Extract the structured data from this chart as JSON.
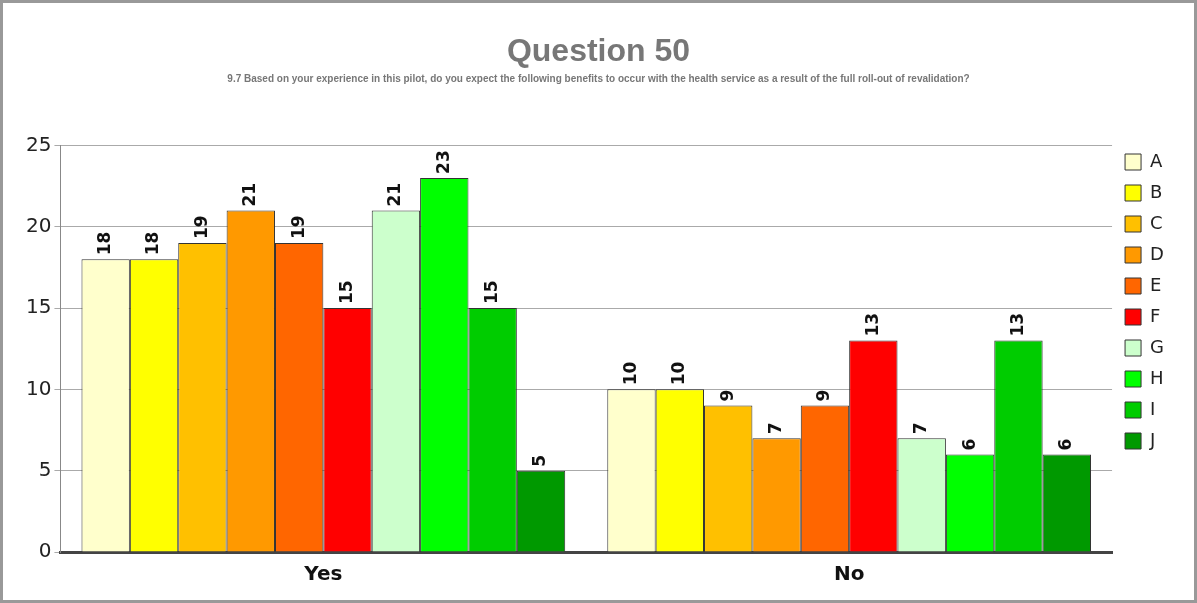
{
  "chart_data": {
    "type": "bar",
    "title": "Question 50",
    "subtitle": "9.7 Based on your experience in this pilot, do you expect the following benefits to occur with the health service as a result of the full roll-out of revalidation?",
    "categories": [
      "Yes",
      "No"
    ],
    "series": [
      {
        "name": "A",
        "color": "#ffffcc",
        "values": [
          18,
          10
        ]
      },
      {
        "name": "B",
        "color": "#ffff00",
        "values": [
          18,
          10
        ]
      },
      {
        "name": "C",
        "color": "#ffc000",
        "values": [
          19,
          9
        ]
      },
      {
        "name": "D",
        "color": "#ff9900",
        "values": [
          21,
          7
        ]
      },
      {
        "name": "E",
        "color": "#ff6600",
        "values": [
          19,
          9
        ]
      },
      {
        "name": "F",
        "color": "#ff0000",
        "values": [
          15,
          13
        ]
      },
      {
        "name": "G",
        "color": "#ccffcc",
        "values": [
          21,
          7
        ]
      },
      {
        "name": "H",
        "color": "#00ff00",
        "values": [
          23,
          6
        ]
      },
      {
        "name": "I",
        "color": "#00cc00",
        "values": [
          15,
          13
        ]
      },
      {
        "name": "J",
        "color": "#009900",
        "values": [
          5,
          6
        ]
      }
    ],
    "ylim": [
      0,
      25
    ],
    "yticks": [
      0,
      5,
      10,
      15,
      20,
      25
    ],
    "grid": "y",
    "legend": "right",
    "data_labels": true
  }
}
